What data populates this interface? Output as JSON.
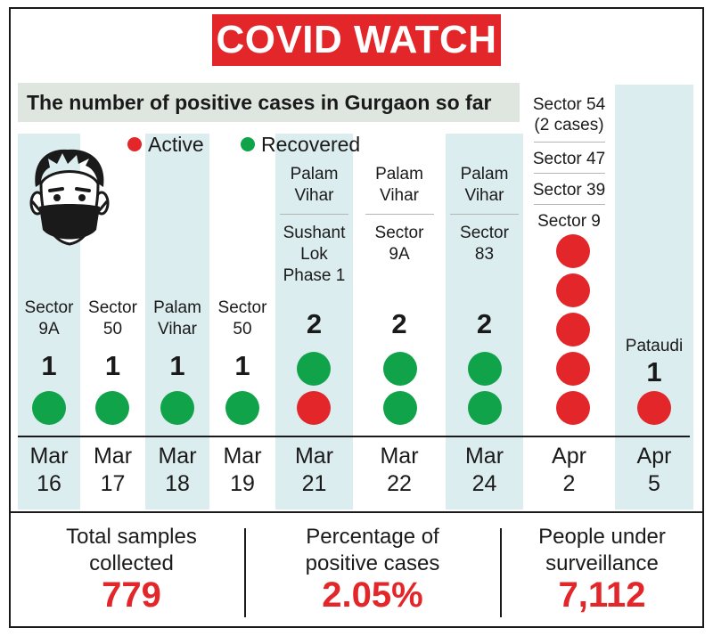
{
  "title": "COVID WATCH",
  "subtitle": "The number of positive cases in Gurgaon so far",
  "legend": {
    "active": "Active",
    "recovered": "Recovered"
  },
  "colors": {
    "active": "#e3262a",
    "recovered": "#10a34a",
    "band": "#dcedf0",
    "title_bg": "#e3262a"
  },
  "icons": {
    "face": "masked-man-icon"
  },
  "chart_data": {
    "type": "table",
    "columns": [
      {
        "date": [
          "Mar",
          "16"
        ],
        "count": "1",
        "areas": [
          "Sector\n9A"
        ],
        "active": 0,
        "recovered": 1
      },
      {
        "date": [
          "Mar",
          "17"
        ],
        "count": "1",
        "areas": [
          "Sector\n50"
        ],
        "active": 0,
        "recovered": 1
      },
      {
        "date": [
          "Mar",
          "18"
        ],
        "count": "1",
        "areas": [
          "Palam\nVihar"
        ],
        "active": 0,
        "recovered": 1
      },
      {
        "date": [
          "Mar",
          "19"
        ],
        "count": "1",
        "areas": [
          "Sector\n50"
        ],
        "active": 0,
        "recovered": 1
      },
      {
        "date": [
          "Mar",
          "21"
        ],
        "count": "2",
        "areas": [
          "Palam\nVihar",
          "Sushant\nLok\nPhase 1"
        ],
        "active": 1,
        "recovered": 1
      },
      {
        "date": [
          "Mar",
          "22"
        ],
        "count": "2",
        "areas": [
          "Palam\nVihar",
          "Sector\n9A"
        ],
        "active": 0,
        "recovered": 2
      },
      {
        "date": [
          "Mar",
          "24"
        ],
        "count": "2",
        "areas": [
          "Palam\nVihar",
          "Sector\n83"
        ],
        "active": 0,
        "recovered": 2
      },
      {
        "date": [
          "Apr",
          "2"
        ],
        "count": "",
        "areas": [
          "Sector 54\n(2 cases)",
          "Sector 47",
          "Sector 39",
          "Sector 9"
        ],
        "active": 5,
        "recovered": 0
      },
      {
        "date": [
          "Apr",
          "5"
        ],
        "count": "1",
        "areas": [
          "Pataudi"
        ],
        "active": 1,
        "recovered": 0
      }
    ]
  },
  "stats": [
    {
      "label": "Total samples\ncollected",
      "value": "779"
    },
    {
      "label": "Percentage of\npositive cases",
      "value": "2.05%"
    },
    {
      "label": "People under\nsurveillance",
      "value": "7,112"
    }
  ]
}
